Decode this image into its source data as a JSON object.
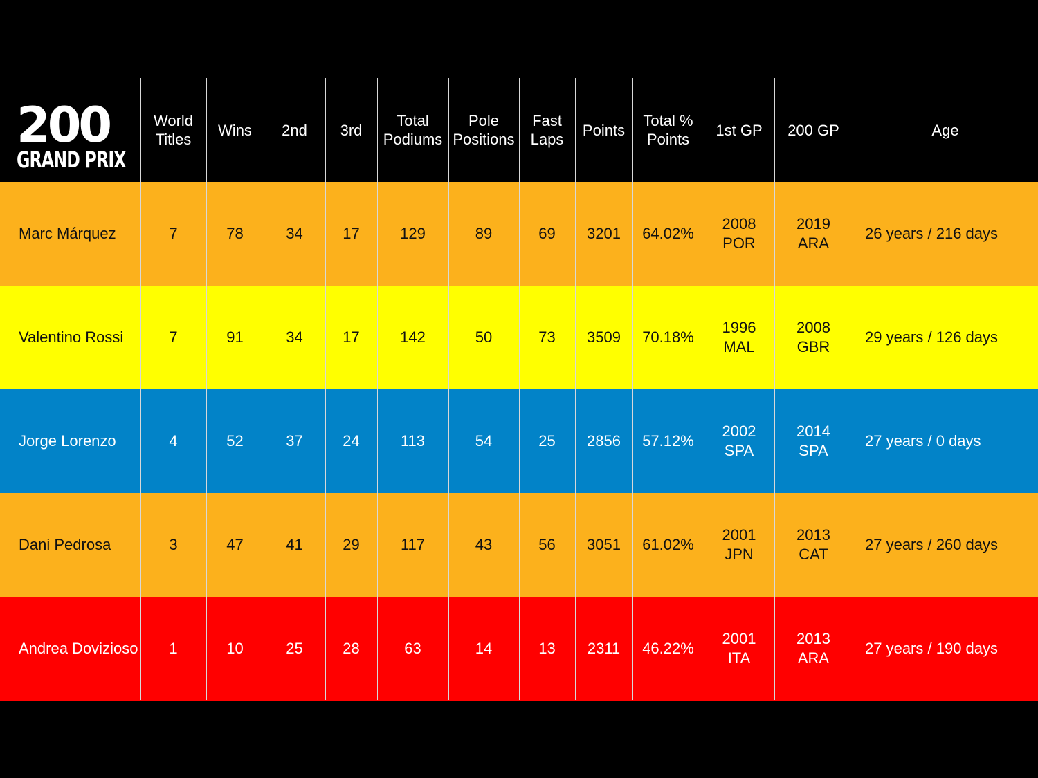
{
  "logo": {
    "number": "200",
    "subtitle": "GRAND PRIX"
  },
  "chart_data": {
    "type": "table",
    "columns": [
      "World\nTitles",
      "Wins",
      "2nd",
      "3rd",
      "Total\nPodiums",
      "Pole\nPositions",
      "Fast\nLaps",
      "Points",
      "Total %\nPoints",
      "1st GP",
      "200 GP",
      "Age"
    ],
    "rows": [
      {
        "rider": "Marc Márquez",
        "color": "#fcb11c",
        "text_color": "#111111",
        "values": [
          "7",
          "78",
          "34",
          "17",
          "129",
          "89",
          "69",
          "3201",
          "64.02%",
          "2008\nPOR",
          "2019\nARA",
          "26 years / 216 days"
        ]
      },
      {
        "rider": "Valentino Rossi",
        "color": "#ffff00",
        "text_color": "#111111",
        "values": [
          "7",
          "91",
          "34",
          "17",
          "142",
          "50",
          "73",
          "3509",
          "70.18%",
          "1996\nMAL",
          "2008\nGBR",
          "29 years / 126 days"
        ]
      },
      {
        "rider": "Jorge Lorenzo",
        "color": "#0283c8",
        "text_color": "#ffffff",
        "values": [
          "4",
          "52",
          "37",
          "24",
          "113",
          "54",
          "25",
          "2856",
          "57.12%",
          "2002\nSPA",
          "2014\nSPA",
          "27 years / 0 days"
        ]
      },
      {
        "rider": "Dani Pedrosa",
        "color": "#fcb11c",
        "text_color": "#111111",
        "values": [
          "3",
          "47",
          "41",
          "29",
          "117",
          "43",
          "56",
          "3051",
          "61.02%",
          "2001\nJPN",
          "2013\nCAT",
          "27 years / 260 days"
        ]
      },
      {
        "rider": "Andrea Dovizioso",
        "color": "#ff0000",
        "text_color": "#ffffff",
        "values": [
          "1",
          "10",
          "25",
          "28",
          "63",
          "14",
          "13",
          "2311",
          "46.22%",
          "2001\nITA",
          "2013\nARA",
          "27 years / 190 days"
        ]
      }
    ]
  }
}
